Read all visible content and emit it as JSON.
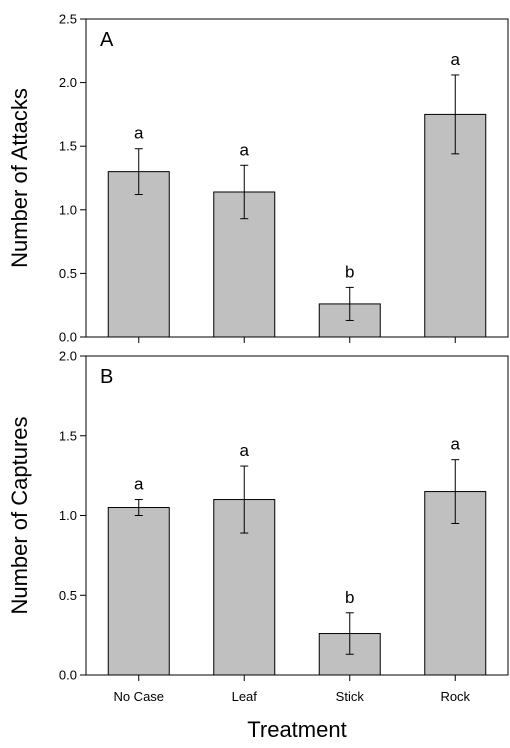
{
  "chart_data": [
    {
      "type": "bar",
      "panel_label": "A",
      "ylabel": "Number of Attacks",
      "xlabel": "",
      "categories": [
        "No Case",
        "Leaf",
        "Stick",
        "Rock"
      ],
      "values": [
        1.3,
        1.14,
        0.26,
        1.75
      ],
      "errors": [
        0.18,
        0.21,
        0.13,
        0.31
      ],
      "significance": [
        "a",
        "a",
        "b",
        "a"
      ],
      "ylim": [
        0,
        2.5
      ],
      "yticks": [
        "0.0",
        "0.5",
        "1.0",
        "1.5",
        "2.0",
        "2.5"
      ],
      "show_xtick_labels": false,
      "grid": false,
      "bar_color": "#c0c0c0"
    },
    {
      "type": "bar",
      "panel_label": "B",
      "ylabel": "Number of Captures",
      "xlabel": "Treatment",
      "categories": [
        "No Case",
        "Leaf",
        "Stick",
        "Rock"
      ],
      "values": [
        1.05,
        1.1,
        0.26,
        1.15
      ],
      "errors": [
        0.05,
        0.21,
        0.13,
        0.2
      ],
      "significance": [
        "a",
        "a",
        "b",
        "a"
      ],
      "ylim": [
        0,
        2.0
      ],
      "yticks": [
        "0.0",
        "0.5",
        "1.0",
        "1.5",
        "2.0"
      ],
      "show_xtick_labels": true,
      "grid": false,
      "bar_color": "#c0c0c0"
    }
  ]
}
